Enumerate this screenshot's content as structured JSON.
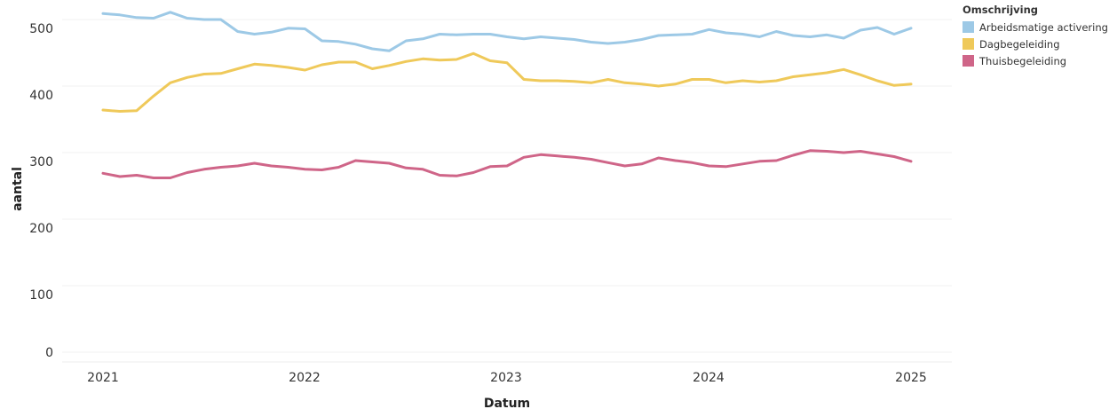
{
  "chart_data": {
    "type": "line",
    "title": "",
    "xlabel": "Datum",
    "ylabel": "aantal",
    "x_ticks": [
      "2021",
      "2022",
      "2023",
      "2024",
      "2025"
    ],
    "y_ticks": [
      "0",
      "100",
      "200",
      "300",
      "400",
      "500"
    ],
    "ylim": [
      0,
      520
    ],
    "grid": true,
    "legend_title": "Omschrijving",
    "legend_position": "top-right",
    "x": [
      "2021-01",
      "2021-02",
      "2021-03",
      "2021-04",
      "2021-05",
      "2021-06",
      "2021-07",
      "2021-08",
      "2021-09",
      "2021-10",
      "2021-11",
      "2021-12",
      "2022-01",
      "2022-02",
      "2022-03",
      "2022-04",
      "2022-05",
      "2022-06",
      "2022-07",
      "2022-08",
      "2022-09",
      "2022-10",
      "2022-11",
      "2022-12",
      "2023-01",
      "2023-02",
      "2023-03",
      "2023-04",
      "2023-05",
      "2023-06",
      "2023-07",
      "2023-08",
      "2023-09",
      "2023-10",
      "2023-11",
      "2023-12",
      "2024-01",
      "2024-02",
      "2024-03",
      "2024-04",
      "2024-05",
      "2024-06",
      "2024-07",
      "2024-08",
      "2024-09",
      "2024-10",
      "2024-11",
      "2024-12",
      "2025-01"
    ],
    "series": [
      {
        "name": "Arbeidsmatige activering",
        "color": "#9dc9e6",
        "values": [
          509,
          507,
          503,
          502,
          511,
          502,
          500,
          500,
          482,
          478,
          481,
          487,
          486,
          468,
          467,
          463,
          456,
          453,
          468,
          471,
          478,
          477,
          478,
          478,
          474,
          471,
          474,
          472,
          470,
          466,
          464,
          466,
          470,
          476,
          477,
          478,
          485,
          480,
          478,
          474,
          482,
          476,
          474,
          477,
          472,
          484,
          488,
          478,
          487
        ]
      },
      {
        "name": "Dagbegeleiding",
        "color": "#efc95a",
        "values": [
          364,
          362,
          363,
          385,
          405,
          413,
          418,
          419,
          426,
          433,
          431,
          428,
          424,
          432,
          436,
          436,
          426,
          431,
          437,
          441,
          439,
          440,
          449,
          438,
          435,
          410,
          408,
          408,
          407,
          405,
          410,
          405,
          403,
          400,
          403,
          410,
          410,
          405,
          408,
          406,
          408,
          414,
          417,
          420,
          425,
          417,
          408,
          401,
          403
        ]
      },
      {
        "name": "Thuisbegeleiding",
        "color": "#cf6588",
        "values": [
          269,
          264,
          266,
          262,
          262,
          270,
          275,
          278,
          280,
          284,
          280,
          278,
          275,
          274,
          278,
          288,
          286,
          284,
          277,
          275,
          266,
          265,
          270,
          279,
          280,
          293,
          297,
          295,
          293,
          290,
          285,
          280,
          283,
          292,
          288,
          285,
          280,
          279,
          283,
          287,
          288,
          296,
          303,
          302,
          300,
          302,
          298,
          294,
          287
        ]
      }
    ]
  }
}
